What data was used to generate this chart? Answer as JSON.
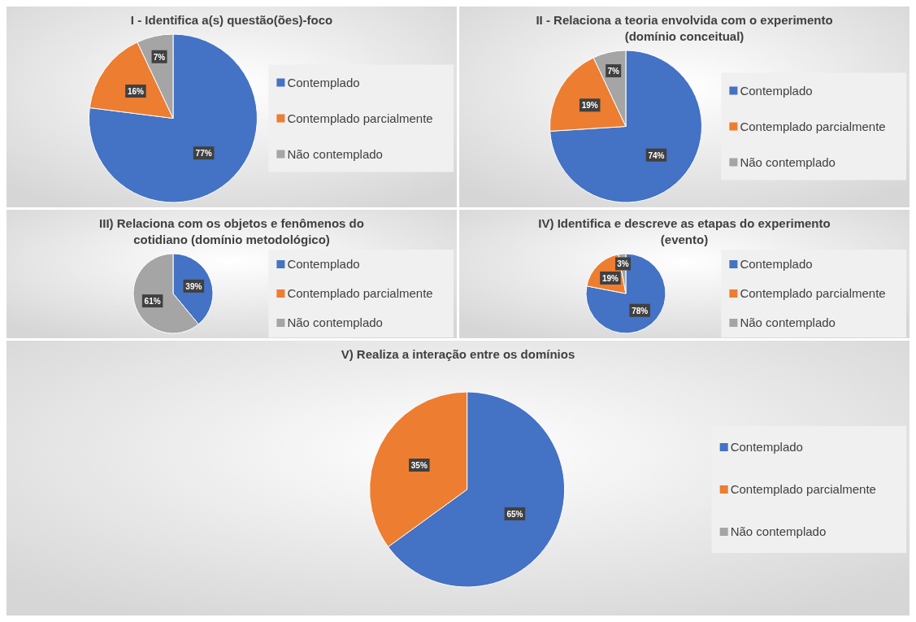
{
  "chart_data": [
    {
      "type": "pie",
      "title": "I - Identifica a(s) questão(ões)-foco",
      "categories": [
        "Contemplado",
        "Contemplado parcialmente",
        "Não contemplado"
      ],
      "values": [
        77,
        16,
        7
      ],
      "colors": [
        "#4472c4",
        "#ed7d31",
        "#a5a5a5"
      ],
      "value_labels": [
        "77%",
        "16%",
        "7%"
      ],
      "legend": "right"
    },
    {
      "type": "pie",
      "title": "II - Relaciona a teoria envolvida com o experimento (domínio conceitual)",
      "categories": [
        "Contemplado",
        "Contemplado parcialmente",
        "Não contemplado"
      ],
      "values": [
        74,
        19,
        7
      ],
      "colors": [
        "#4472c4",
        "#ed7d31",
        "#a5a5a5"
      ],
      "value_labels": [
        "74%",
        "19%",
        "7%"
      ],
      "legend": "right"
    },
    {
      "type": "pie",
      "title": "III) Relaciona com os objetos e fenômenos do cotidiano (domínio metodológico)",
      "categories": [
        "Contemplado",
        "Contemplado parcialmente",
        "Não contemplado"
      ],
      "values": [
        39,
        0,
        61
      ],
      "colors": [
        "#4472c4",
        "#ed7d31",
        "#a5a5a5"
      ],
      "value_labels": [
        "39%",
        null,
        "61%"
      ],
      "legend": "right"
    },
    {
      "type": "pie",
      "title": "IV) Identifica e descreve as etapas do experimento (evento)",
      "categories": [
        "Contemplado",
        "Contemplado parcialmente",
        "Não contemplado"
      ],
      "values": [
        78,
        19,
        3
      ],
      "colors": [
        "#4472c4",
        "#ed7d31",
        "#a5a5a5"
      ],
      "value_labels": [
        "78%",
        "19%",
        "3%"
      ],
      "legend": "right"
    },
    {
      "type": "pie",
      "title": "V) Realiza a interação entre os domínios",
      "categories": [
        "Contemplado",
        "Contemplado parcialmente",
        "Não contemplado"
      ],
      "values": [
        65,
        35,
        0
      ],
      "colors": [
        "#4472c4",
        "#ed7d31",
        "#a5a5a5"
      ],
      "value_labels": [
        "65%",
        "35%",
        null
      ],
      "legend": "right"
    }
  ]
}
